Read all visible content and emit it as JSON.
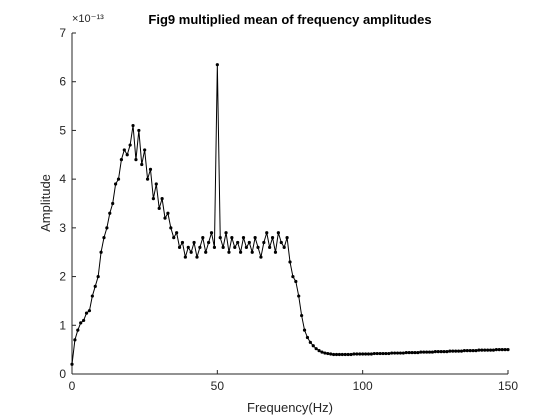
{
  "chart_data": {
    "type": "line",
    "title": "Fig9 multiplied mean of frequency amplitudes",
    "x_label": "Frequency(Hz)",
    "y_label": "Amplitude",
    "y_exponent": "×10⁻¹³",
    "xlim": [
      0,
      150
    ],
    "xticks": [
      0,
      50,
      100,
      150
    ],
    "ylim": [
      0,
      7
    ],
    "yticks": [
      0,
      1,
      2,
      3,
      4,
      5,
      6,
      7
    ],
    "grid": false,
    "series": [
      {
        "name": "Amplitude",
        "color": "#000000",
        "x": [
          0,
          1,
          2,
          3,
          4,
          5,
          6,
          7,
          8,
          9,
          10,
          11,
          12,
          13,
          14,
          15,
          16,
          17,
          18,
          19,
          20,
          21,
          22,
          23,
          24,
          25,
          26,
          27,
          28,
          29,
          30,
          31,
          32,
          33,
          34,
          35,
          36,
          37,
          38,
          39,
          40,
          41,
          42,
          43,
          44,
          45,
          46,
          47,
          48,
          49,
          50,
          51,
          52,
          53,
          54,
          55,
          56,
          57,
          58,
          59,
          60,
          61,
          62,
          63,
          64,
          65,
          66,
          67,
          68,
          69,
          70,
          71,
          72,
          73,
          74,
          75,
          76,
          77,
          78,
          79,
          80,
          81,
          82,
          83,
          84,
          85,
          86,
          87,
          88,
          89,
          90,
          91,
          92,
          93,
          94,
          95,
          96,
          97,
          98,
          99,
          100,
          101,
          102,
          103,
          104,
          105,
          106,
          107,
          108,
          109,
          110,
          111,
          112,
          113,
          114,
          115,
          116,
          117,
          118,
          119,
          120,
          121,
          122,
          123,
          124,
          125,
          126,
          127,
          128,
          129,
          130,
          131,
          132,
          133,
          134,
          135,
          136,
          137,
          138,
          139,
          140,
          141,
          142,
          143,
          144,
          145,
          146,
          147,
          148,
          149,
          150
        ],
        "values": [
          0.2,
          0.7,
          0.9,
          1.05,
          1.1,
          1.25,
          1.3,
          1.6,
          1.8,
          2.0,
          2.5,
          2.8,
          3.0,
          3.3,
          3.5,
          3.9,
          4.0,
          4.4,
          4.6,
          4.5,
          4.7,
          5.1,
          4.4,
          5.0,
          4.3,
          4.6,
          4.0,
          4.2,
          3.6,
          3.9,
          3.4,
          3.6,
          3.2,
          3.3,
          3.0,
          2.8,
          2.9,
          2.6,
          2.7,
          2.4,
          2.6,
          2.5,
          2.7,
          2.4,
          2.6,
          2.8,
          2.5,
          2.7,
          2.9,
          2.6,
          6.35,
          2.8,
          2.6,
          2.9,
          2.5,
          2.8,
          2.6,
          2.7,
          2.5,
          2.8,
          2.6,
          2.7,
          2.5,
          2.8,
          2.6,
          2.4,
          2.7,
          2.9,
          2.6,
          2.8,
          2.5,
          2.9,
          2.7,
          2.6,
          2.8,
          2.3,
          2.0,
          1.9,
          1.6,
          1.2,
          0.9,
          0.75,
          0.65,
          0.58,
          0.52,
          0.48,
          0.45,
          0.43,
          0.42,
          0.41,
          0.4,
          0.4,
          0.4,
          0.4,
          0.4,
          0.4,
          0.4,
          0.41,
          0.41,
          0.41,
          0.41,
          0.41,
          0.41,
          0.41,
          0.42,
          0.42,
          0.42,
          0.42,
          0.42,
          0.42,
          0.43,
          0.43,
          0.43,
          0.43,
          0.43,
          0.44,
          0.44,
          0.44,
          0.44,
          0.44,
          0.45,
          0.45,
          0.45,
          0.45,
          0.45,
          0.46,
          0.46,
          0.46,
          0.46,
          0.46,
          0.47,
          0.47,
          0.47,
          0.47,
          0.47,
          0.48,
          0.48,
          0.48,
          0.48,
          0.48,
          0.49,
          0.49,
          0.49,
          0.49,
          0.49,
          0.49,
          0.5,
          0.5,
          0.5,
          0.5,
          0.5
        ]
      }
    ]
  }
}
